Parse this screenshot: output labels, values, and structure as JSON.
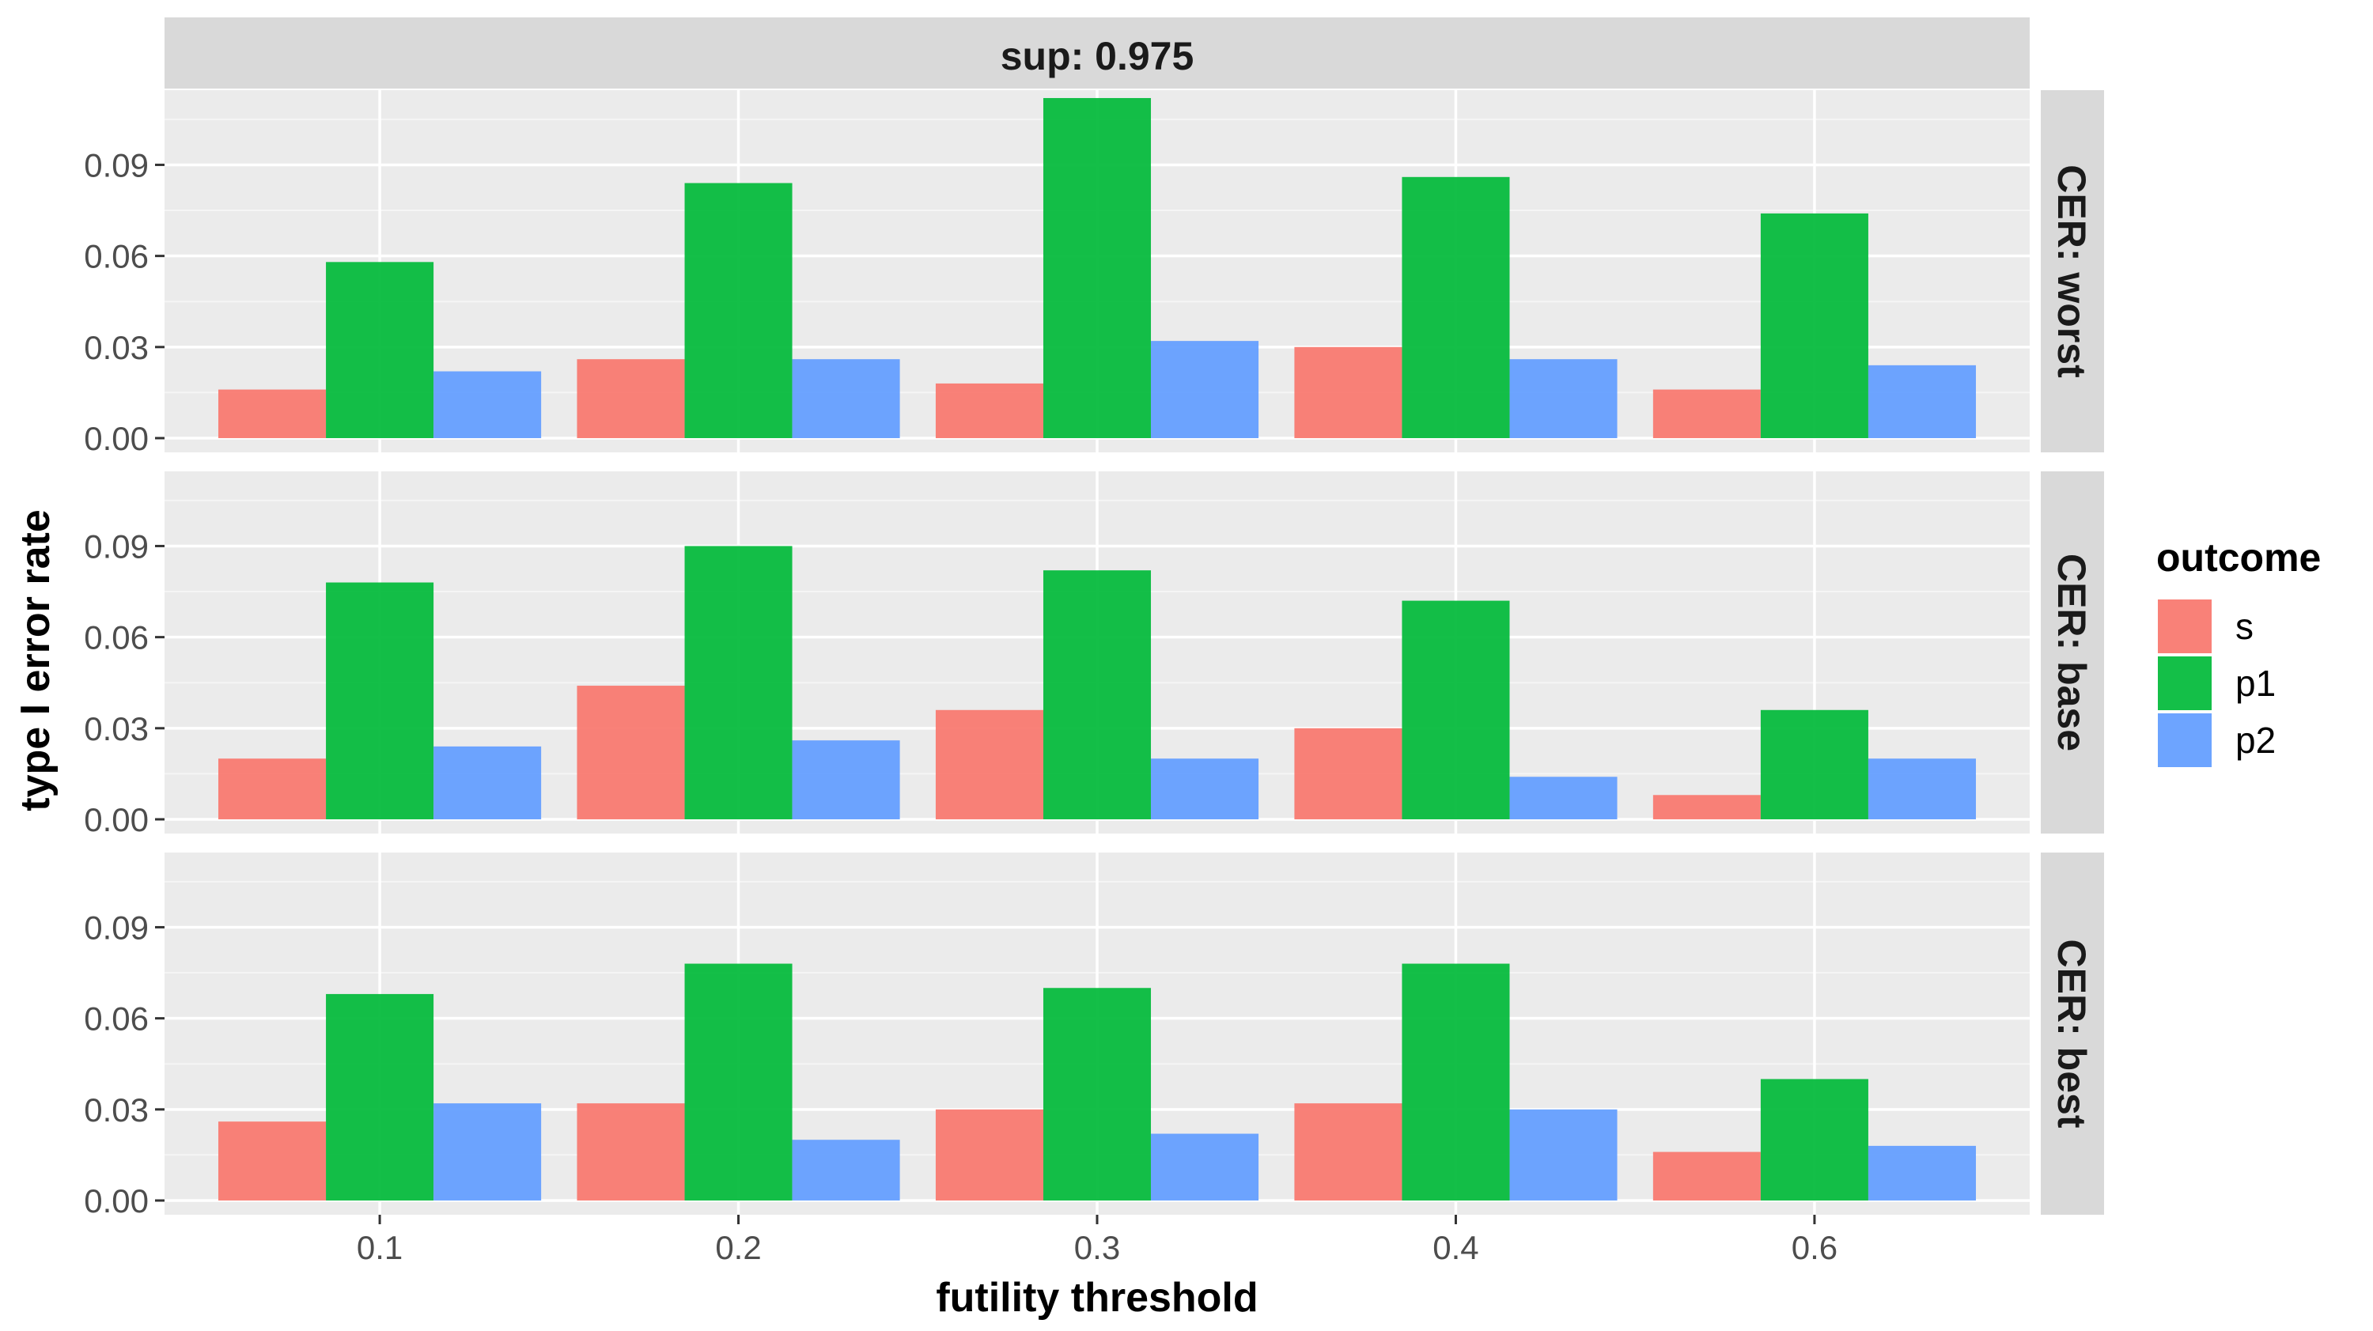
{
  "chart_data": {
    "type": "bar",
    "facet_top_label": "sup: 0.975",
    "xlabel": "futility threshold",
    "ylabel": "type I error rate",
    "categories": [
      "0.1",
      "0.2",
      "0.3",
      "0.4",
      "0.6"
    ],
    "ylim": [
      0,
      0.1146
    ],
    "y_ticks": [
      "0.00",
      "0.03",
      "0.06",
      "0.09"
    ],
    "y_tick_values": [
      0,
      0.03,
      0.06,
      0.09
    ],
    "grid": true,
    "legend": {
      "title": "outcome",
      "position": "right",
      "entries": [
        "s",
        "p1",
        "p2"
      ]
    },
    "series_colors": [
      "#F8766D",
      "#00BA38",
      "#619CFF"
    ],
    "panels": [
      {
        "label": "CER: worst",
        "series": [
          {
            "name": "s",
            "values": [
              0.016,
              0.026,
              0.018,
              0.03,
              0.016
            ]
          },
          {
            "name": "p1",
            "values": [
              0.058,
              0.084,
              0.112,
              0.086,
              0.074
            ]
          },
          {
            "name": "p2",
            "values": [
              0.022,
              0.026,
              0.032,
              0.026,
              0.024
            ]
          }
        ]
      },
      {
        "label": "CER: base",
        "series": [
          {
            "name": "s",
            "values": [
              0.02,
              0.044,
              0.036,
              0.03,
              0.008
            ]
          },
          {
            "name": "p1",
            "values": [
              0.078,
              0.09,
              0.082,
              0.072,
              0.036
            ]
          },
          {
            "name": "p2",
            "values": [
              0.024,
              0.026,
              0.02,
              0.014,
              0.02
            ]
          }
        ]
      },
      {
        "label": "CER: best",
        "series": [
          {
            "name": "s",
            "values": [
              0.026,
              0.032,
              0.03,
              0.032,
              0.016
            ]
          },
          {
            "name": "p1",
            "values": [
              0.068,
              0.078,
              0.07,
              0.078,
              0.04
            ]
          },
          {
            "name": "p2",
            "values": [
              0.032,
              0.02,
              0.022,
              0.03,
              0.018
            ]
          }
        ]
      }
    ]
  }
}
